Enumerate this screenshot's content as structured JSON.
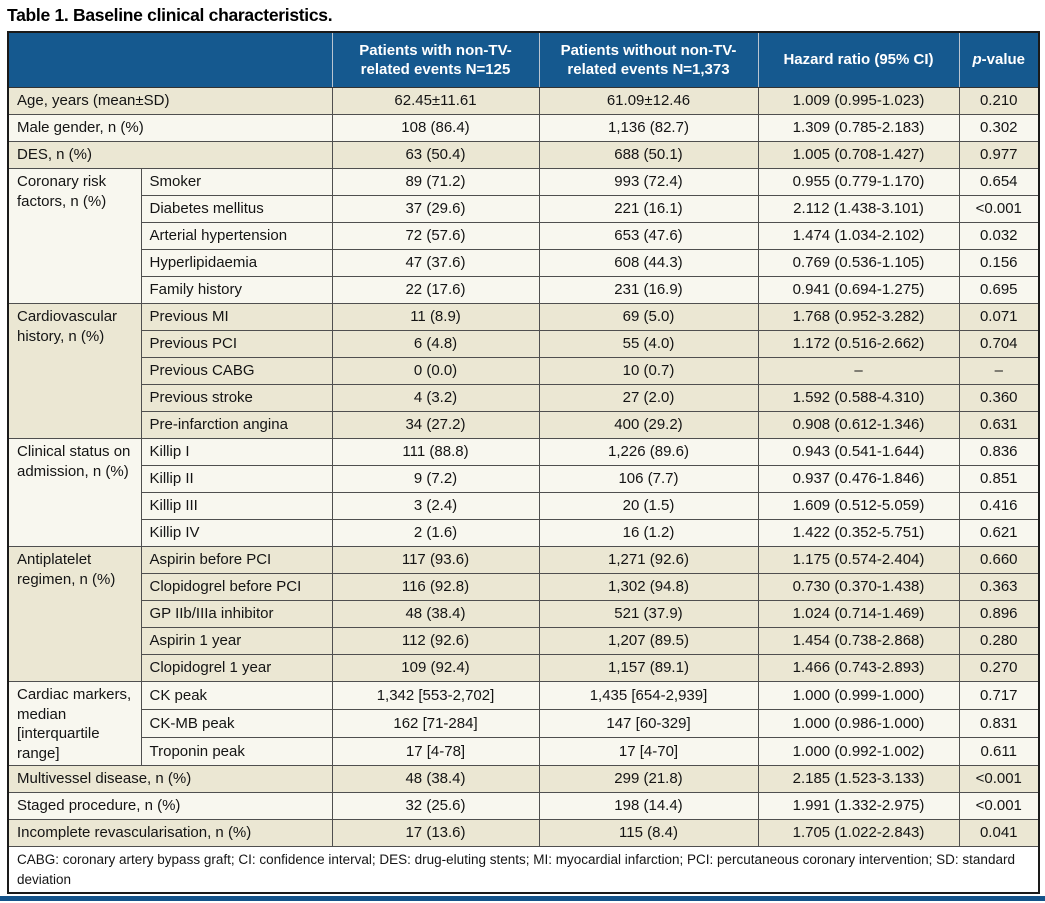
{
  "title": "Table 1. Baseline clinical characteristics.",
  "colors": {
    "header_bg": "#15598f",
    "row_cream": "#ebe7d3",
    "row_light": "#f8f7ef",
    "border_dark": "#1a1a1a",
    "bottom_bar": "#14538a"
  },
  "header": {
    "col1": "",
    "col2": "Patients with non-TV-related events N=125",
    "col3": "Patients without non-TV-related events N=1,373",
    "col4": "Hazard ratio (95% CI)",
    "pvalue_italic": "p",
    "pvalue_rest": "-value"
  },
  "sections": [
    {
      "label": "Age, years (mean±SD)",
      "shade": "cream",
      "rows": [
        {
          "cells": [
            "62.45±11.61",
            "61.09±12.46",
            "1.009 (0.995-1.023)",
            "0.210"
          ]
        }
      ]
    },
    {
      "label": "Male gender, n (%)",
      "shade": "light",
      "rows": [
        {
          "cells": [
            "108 (86.4)",
            "1,136 (82.7)",
            "1.309 (0.785-2.183)",
            "0.302"
          ]
        }
      ]
    },
    {
      "label": "DES, n (%)",
      "shade": "cream",
      "rows": [
        {
          "cells": [
            "63 (50.4)",
            "688 (50.1)",
            "1.005 (0.708-1.427)",
            "0.977"
          ]
        }
      ]
    },
    {
      "label": "Coronary risk factors, n (%)",
      "shade": "light",
      "rows": [
        {
          "sub": "Smoker",
          "cells": [
            "89 (71.2)",
            "993 (72.4)",
            "0.955 (0.779-1.170)",
            "0.654"
          ]
        },
        {
          "sub": "Diabetes mellitus",
          "cells": [
            "37 (29.6)",
            "221 (16.1)",
            "2.112 (1.438-3.101)",
            "<0.001"
          ]
        },
        {
          "sub": "Arterial hypertension",
          "cells": [
            "72 (57.6)",
            "653 (47.6)",
            "1.474 (1.034-2.102)",
            "0.032"
          ]
        },
        {
          "sub": "Hyperlipidaemia",
          "cells": [
            "47 (37.6)",
            "608 (44.3)",
            "0.769 (0.536-1.105)",
            "0.156"
          ]
        },
        {
          "sub": "Family history",
          "cells": [
            "22 (17.6)",
            "231 (16.9)",
            "0.941 (0.694-1.275)",
            "0.695"
          ]
        }
      ]
    },
    {
      "label": "Cardiovascular history, n (%)",
      "shade": "cream",
      "rows": [
        {
          "sub": "Previous MI",
          "cells": [
            "11 (8.9)",
            "69 (5.0)",
            "1.768 (0.952-3.282)",
            "0.071"
          ]
        },
        {
          "sub": "Previous PCI",
          "cells": [
            "6 (4.8)",
            "55 (4.0)",
            "1.172 (0.516-2.662)",
            "0.704"
          ]
        },
        {
          "sub": "Previous CABG",
          "cells": [
            "0 (0.0)",
            "10 (0.7)",
            "–",
            "–"
          ]
        },
        {
          "sub": "Previous stroke",
          "cells": [
            "4 (3.2)",
            "27 (2.0)",
            "1.592 (0.588-4.310)",
            "0.360"
          ]
        },
        {
          "sub": "Pre-infarction angina",
          "cells": [
            "34 (27.2)",
            "400 (29.2)",
            "0.908 (0.612-1.346)",
            "0.631"
          ]
        }
      ]
    },
    {
      "label": "Clinical status on admission, n (%)",
      "shade": "light",
      "rows": [
        {
          "sub": "Killip I",
          "cells": [
            "111 (88.8)",
            "1,226 (89.6)",
            "0.943 (0.541-1.644)",
            "0.836"
          ]
        },
        {
          "sub": "Killip II",
          "cells": [
            "9 (7.2)",
            "106 (7.7)",
            "0.937 (0.476-1.846)",
            "0.851"
          ]
        },
        {
          "sub": "Killip III",
          "cells": [
            "3 (2.4)",
            "20 (1.5)",
            "1.609 (0.512-5.059)",
            "0.416"
          ]
        },
        {
          "sub": "Killip IV",
          "cells": [
            "2 (1.6)",
            "16 (1.2)",
            "1.422 (0.352-5.751)",
            "0.621"
          ]
        }
      ]
    },
    {
      "label": "Antiplatelet regimen, n (%)",
      "shade": "cream",
      "rows": [
        {
          "sub": "Aspirin before PCI",
          "cells": [
            "117 (93.6)",
            "1,271 (92.6)",
            "1.175 (0.574-2.404)",
            "0.660"
          ]
        },
        {
          "sub": "Clopidogrel before PCI",
          "cells": [
            "116 (92.8)",
            "1,302 (94.8)",
            "0.730 (0.370-1.438)",
            "0.363"
          ]
        },
        {
          "sub": "GP IIb/IIIa inhibitor",
          "cells": [
            "48 (38.4)",
            "521 (37.9)",
            "1.024 (0.714-1.469)",
            "0.896"
          ]
        },
        {
          "sub": "Aspirin 1 year",
          "cells": [
            "112 (92.6)",
            "1,207 (89.5)",
            "1.454 (0.738-2.868)",
            "0.280"
          ]
        },
        {
          "sub": "Clopidogrel 1 year",
          "cells": [
            "109 (92.4)",
            "1,157 (89.1)",
            "1.466 (0.743-2.893)",
            "0.270"
          ]
        }
      ]
    },
    {
      "label": "Cardiac markers, median [interquartile range]",
      "shade": "light",
      "rows": [
        {
          "sub": "CK peak",
          "cells": [
            "1,342 [553-2,702]",
            "1,435 [654-2,939]",
            "1.000 (0.999-1.000)",
            "0.717"
          ]
        },
        {
          "sub": "CK-MB peak",
          "cells": [
            "162 [71-284]",
            "147 [60-329]",
            "1.000 (0.986-1.000)",
            "0.831"
          ]
        },
        {
          "sub": "Troponin peak",
          "cells": [
            "17 [4-78]",
            "17 [4-70]",
            "1.000 (0.992-1.002)",
            "0.611"
          ]
        }
      ]
    },
    {
      "label": "Multivessel disease, n (%)",
      "shade": "cream",
      "rows": [
        {
          "cells": [
            "48 (38.4)",
            "299 (21.8)",
            "2.185 (1.523-3.133)",
            "<0.001"
          ]
        }
      ]
    },
    {
      "label": "Staged procedure, n (%)",
      "shade": "light",
      "rows": [
        {
          "cells": [
            "32 (25.6)",
            "198 (14.4)",
            "1.991 (1.332-2.975)",
            "<0.001"
          ]
        }
      ]
    },
    {
      "label": "Incomplete revascularisation, n (%)",
      "shade": "cream",
      "rows": [
        {
          "cells": [
            "17 (13.6)",
            "115 (8.4)",
            "1.705 (1.022-2.843)",
            "0.041"
          ]
        }
      ]
    }
  ],
  "footnote": "CABG: coronary artery bypass graft; CI: confidence interval; DES: drug-eluting stents; MI: myocardial infarction; PCI: percutaneous coronary intervention; SD: standard deviation"
}
